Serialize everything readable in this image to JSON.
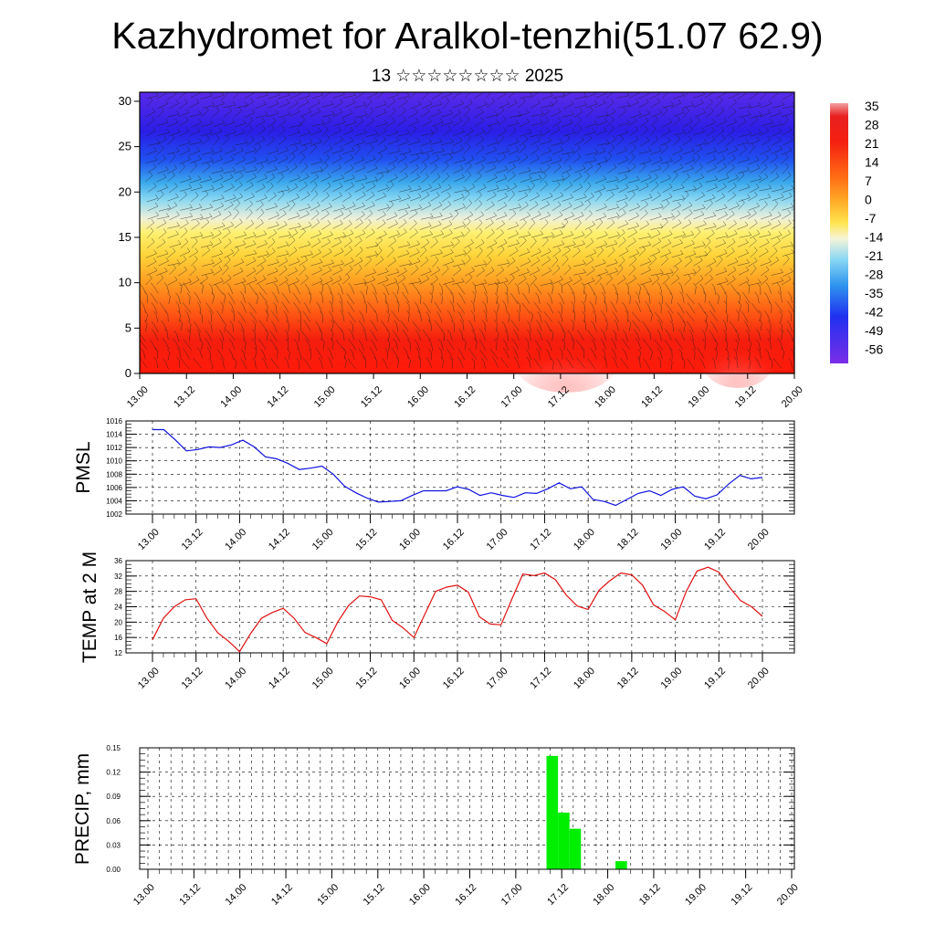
{
  "title": "Kazhydromet for Aralkol-tenzhi(51.07 62.9)",
  "subtitle": "13 ☆☆☆☆☆☆☆☆ 2025",
  "chart_data": [
    {
      "type": "heatmap",
      "name": "Vertical temperature cross-section with wind barbs",
      "xlabels": [
        "13.00",
        "13.12",
        "14.00",
        "14.12",
        "15.00",
        "15.12",
        "16.00",
        "16.12",
        "17.00",
        "17.12",
        "18.00",
        "18.12",
        "19.00",
        "19.12",
        "20.00"
      ],
      "yticks": [
        0,
        5,
        10,
        15,
        20,
        25,
        30
      ],
      "ylim": [
        0,
        31
      ],
      "colorbar_labels": [
        "35",
        "28",
        "21",
        "14",
        "7",
        "0",
        "-7",
        "-14",
        "-21",
        "-28",
        "-35",
        "-42",
        "-49",
        "-56"
      ],
      "colors": {
        "cold": "#3a1fe0",
        "cool": "#5fc6f0",
        "neutral": "#f3efc8",
        "warm": "#ffe34a",
        "hot": "#e81010",
        "top": "#7a2ee8"
      }
    },
    {
      "type": "line",
      "ylabel": "PMSL",
      "xlabels": [
        "13.00",
        "13.12",
        "14.00",
        "14.12",
        "15.00",
        "15.12",
        "16.00",
        "16.12",
        "17.00",
        "17.12",
        "18.00",
        "18.12",
        "19.00",
        "19.12",
        "20.00"
      ],
      "yticks": [
        "1016",
        "1014",
        "1012",
        "1010",
        "1008",
        "1006",
        "1004",
        "1002"
      ],
      "ylim": [
        1002,
        1016
      ],
      "color": "#1010e0",
      "values": [
        1014.7,
        1014.7,
        1013.2,
        1011.5,
        1011.7,
        1012.1,
        1012.0,
        1012.4,
        1013.1,
        1012.1,
        1010.6,
        1010.3,
        1009.6,
        1008.7,
        1008.9,
        1009.2,
        1008.0,
        1006.2,
        1005.2,
        1004.4,
        1003.8,
        1003.9,
        1004.0,
        1004.8,
        1005.5,
        1005.5,
        1005.5,
        1006.1,
        1005.7,
        1004.8,
        1005.2,
        1004.8,
        1004.5,
        1005.2,
        1005.1,
        1005.8,
        1006.7,
        1005.8,
        1006.1,
        1004.2,
        1003.9,
        1003.3,
        1004.2,
        1005.1,
        1005.5,
        1004.8,
        1005.7,
        1006.1,
        1004.7,
        1004.3,
        1004.9,
        1006.5,
        1007.8,
        1007.3,
        1007.5
      ]
    },
    {
      "type": "line",
      "ylabel": "TEMP at 2 M",
      "xlabels": [
        "13.00",
        "13.12",
        "14.00",
        "14.12",
        "15.00",
        "15.12",
        "16.00",
        "16.12",
        "17.00",
        "17.12",
        "18.00",
        "18.12",
        "19.00",
        "19.12",
        "20.00"
      ],
      "yticks": [
        "36",
        "32",
        "28",
        "24",
        "20",
        "16",
        "12"
      ],
      "ylim": [
        12,
        36
      ],
      "color": "#e01010",
      "values": [
        15.4,
        21.0,
        24.0,
        25.8,
        26.1,
        21.0,
        17.2,
        15.0,
        12.3,
        17.0,
        21.0,
        22.5,
        23.6,
        21.0,
        17.3,
        16.0,
        14.4,
        20.0,
        24.3,
        26.8,
        26.6,
        25.8,
        20.5,
        18.5,
        16.0,
        22.0,
        28.0,
        29.1,
        29.6,
        27.8,
        21.4,
        19.5,
        19.3,
        26.0,
        32.5,
        32.1,
        32.8,
        31.0,
        27.0,
        24.2,
        23.3,
        28.3,
        30.8,
        32.8,
        32.3,
        29.6,
        24.5,
        22.8,
        20.6,
        28.0,
        33.3,
        34.3,
        33.0,
        29.0,
        25.6,
        24.0,
        21.5
      ]
    },
    {
      "type": "bar",
      "ylabel": "PRECIP, mm",
      "xlabels": [
        "13.00",
        "13.12",
        "14.00",
        "14.12",
        "15.00",
        "15.12",
        "16.00",
        "16.12",
        "17.00",
        "17.12",
        "18.00",
        "18.12",
        "19.00",
        "19.12",
        "20.00"
      ],
      "yticks": [
        "0.15",
        "0.12",
        "0.09",
        "0.06",
        "0.03",
        "0.00"
      ],
      "ylim": [
        0,
        0.15
      ],
      "color": "#00ee00",
      "bars": [
        {
          "x": 105,
          "value": 0.14
        },
        {
          "x": 108,
          "value": 0.07
        },
        {
          "x": 111,
          "value": 0.05
        },
        {
          "x": 123,
          "value": 0.01
        }
      ]
    }
  ]
}
